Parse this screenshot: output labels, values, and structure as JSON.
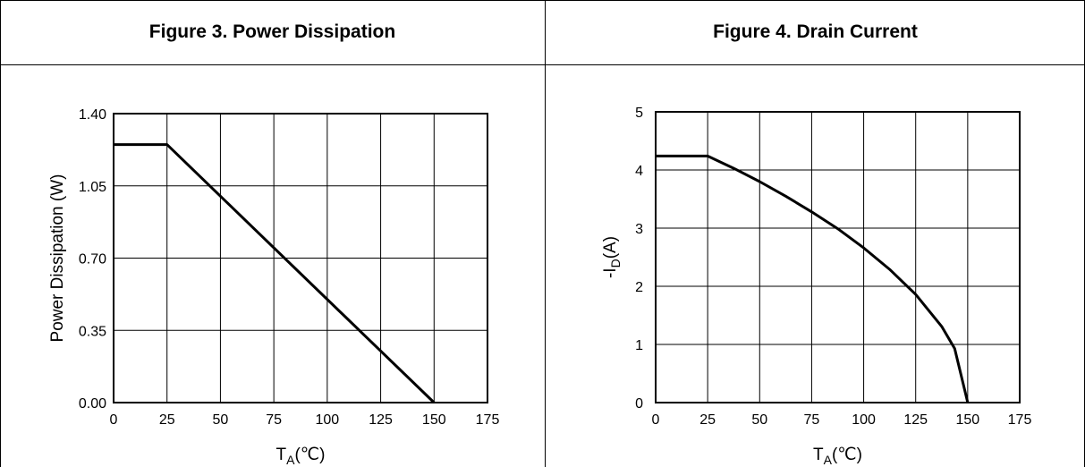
{
  "panels": [
    {
      "title": "Figure 3. Power Dissipation"
    },
    {
      "title": "Figure 4. Drain Current"
    }
  ],
  "chart_data": [
    {
      "type": "line",
      "title": "Figure 3. Power Dissipation",
      "xlabel": "T_A(℃)",
      "xlabel_main": "T",
      "xlabel_sub": "A",
      "xlabel_unit": "(℃)",
      "ylabel": "Power Dissipation (W)",
      "xlim": [
        0,
        175
      ],
      "ylim": [
        0,
        1.4
      ],
      "xticks": [
        0,
        25,
        50,
        75,
        100,
        125,
        150,
        175
      ],
      "xtick_labels": [
        "0",
        "25",
        "50",
        "75",
        "100",
        "125",
        "150",
        "175"
      ],
      "yticks": [
        0,
        0.35,
        0.7,
        1.05,
        1.4
      ],
      "ytick_labels": [
        "0.00",
        "0.35",
        "0.70",
        "1.05",
        "1.40"
      ],
      "grid": true,
      "series": [
        {
          "x": [
            0,
            25,
            150
          ],
          "y": [
            1.25,
            1.25,
            0
          ]
        }
      ]
    },
    {
      "type": "line",
      "title": "Figure 4. Drain Current",
      "xlabel": "T_A(℃)",
      "xlabel_main": "T",
      "xlabel_sub": "A",
      "xlabel_unit": "(℃)",
      "ylabel": "-I_D(A)",
      "ylabel_pre": "-I",
      "ylabel_sub": "D",
      "ylabel_post": "(A)",
      "xlim": [
        0,
        175
      ],
      "ylim": [
        0,
        5
      ],
      "xticks": [
        0,
        25,
        50,
        75,
        100,
        125,
        150,
        175
      ],
      "xtick_labels": [
        "0",
        "25",
        "50",
        "75",
        "100",
        "125",
        "150",
        "175"
      ],
      "yticks": [
        0,
        1,
        2,
        3,
        4,
        5
      ],
      "ytick_labels": [
        "0",
        "1",
        "2",
        "3",
        "4",
        "5"
      ],
      "grid": true,
      "series": [
        {
          "x": [
            0,
            25,
            37.5,
            50,
            62.5,
            75,
            87.5,
            100,
            112.5,
            125,
            137.5,
            143.75,
            150
          ],
          "y": [
            4.24,
            4.24,
            4.03,
            3.8,
            3.55,
            3.28,
            2.99,
            2.66,
            2.29,
            1.86,
            1.31,
            0.93,
            0
          ]
        }
      ]
    }
  ]
}
